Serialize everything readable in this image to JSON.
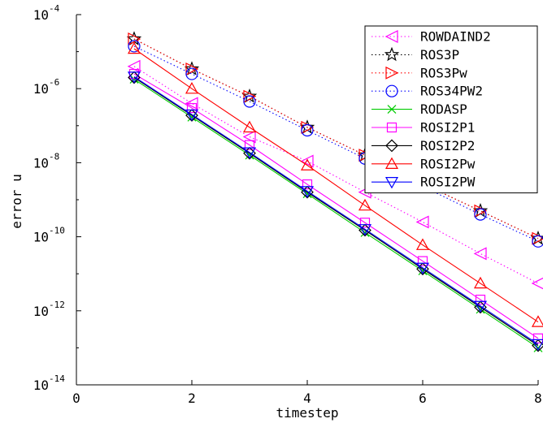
{
  "chart_data": {
    "type": "line",
    "title": "",
    "xlabel": "timestep",
    "ylabel": "error u",
    "xlim": [
      0,
      8
    ],
    "ylim_exponent": [
      -14,
      -4
    ],
    "y_scale": "log",
    "grid": false,
    "legend_position": "top-right",
    "x_ticks": [
      "0",
      "2",
      "4",
      "6",
      "8"
    ],
    "y_ticks": [
      {
        "base": "10",
        "exp": "-14"
      },
      {
        "base": "10",
        "exp": "-12"
      },
      {
        "base": "10",
        "exp": "-10"
      },
      {
        "base": "10",
        "exp": "-8"
      },
      {
        "base": "10",
        "exp": "-6"
      },
      {
        "base": "10",
        "exp": "-4"
      }
    ],
    "x": [
      1,
      2,
      3,
      4,
      5,
      6,
      7,
      8
    ],
    "series": [
      {
        "name": "ROWDAIND2",
        "color": "#ff00ff",
        "marker": "triangle-left",
        "line": "dotted",
        "values": [
          4e-06,
          4e-07,
          5e-08,
          1.1e-08,
          1.6e-09,
          2.5e-10,
          3.5e-11,
          5.5e-12
        ]
      },
      {
        "name": "ROS3P",
        "color": "#000000",
        "marker": "star",
        "line": "dotted",
        "values": [
          2.2e-05,
          3.4e-06,
          6.2e-07,
          9e-08,
          1.6e-08,
          2.7e-09,
          5e-10,
          9e-11
        ]
      },
      {
        "name": "ROS3Pw",
        "color": "#ff0000",
        "marker": "triangle-right",
        "line": "dotted",
        "values": [
          2.2e-05,
          3.4e-06,
          6.2e-07,
          9e-08,
          1.6e-08,
          2.7e-09,
          5e-10,
          9e-11
        ]
      },
      {
        "name": "ROS34PW2",
        "color": "#0000ff",
        "marker": "circle",
        "line": "dotted",
        "values": [
          1.4e-05,
          2.5e-06,
          4.5e-07,
          7.5e-08,
          1.3e-08,
          2.3e-09,
          4e-10,
          7.5e-11
        ]
      },
      {
        "name": "RODASP",
        "color": "#00cc00",
        "marker": "x",
        "line": "solid",
        "values": [
          1.8e-06,
          1.7e-07,
          1.6e-08,
          1.45e-09,
          1.3e-10,
          1.2e-11,
          1.1e-12,
          1e-13
        ]
      },
      {
        "name": "ROSI2P1",
        "color": "#ff00ff",
        "marker": "square",
        "line": "solid",
        "values": [
          2.5e-06,
          3e-07,
          3e-08,
          2.6e-09,
          2.4e-10,
          2.2e-11,
          2e-12,
          1.8e-13
        ]
      },
      {
        "name": "ROSI2P2",
        "color": "#000000",
        "marker": "diamond",
        "line": "solid",
        "values": [
          2e-06,
          1.9e-07,
          1.8e-08,
          1.6e-09,
          1.5e-10,
          1.35e-11,
          1.25e-12,
          1.15e-13
        ]
      },
      {
        "name": "ROSI2Pw",
        "color": "#ff0000",
        "marker": "triangle-up",
        "line": "solid",
        "values": [
          1.2e-05,
          1e-06,
          9e-08,
          8.5e-09,
          7e-10,
          6e-11,
          5.5e-12,
          5e-13
        ]
      },
      {
        "name": "ROSI2PW",
        "color": "#0000ff",
        "marker": "triangle-down",
        "line": "solid",
        "values": [
          2.1e-06,
          2e-07,
          1.9e-08,
          1.7e-09,
          1.6e-10,
          1.45e-11,
          1.35e-12,
          1.25e-13
        ]
      }
    ]
  }
}
